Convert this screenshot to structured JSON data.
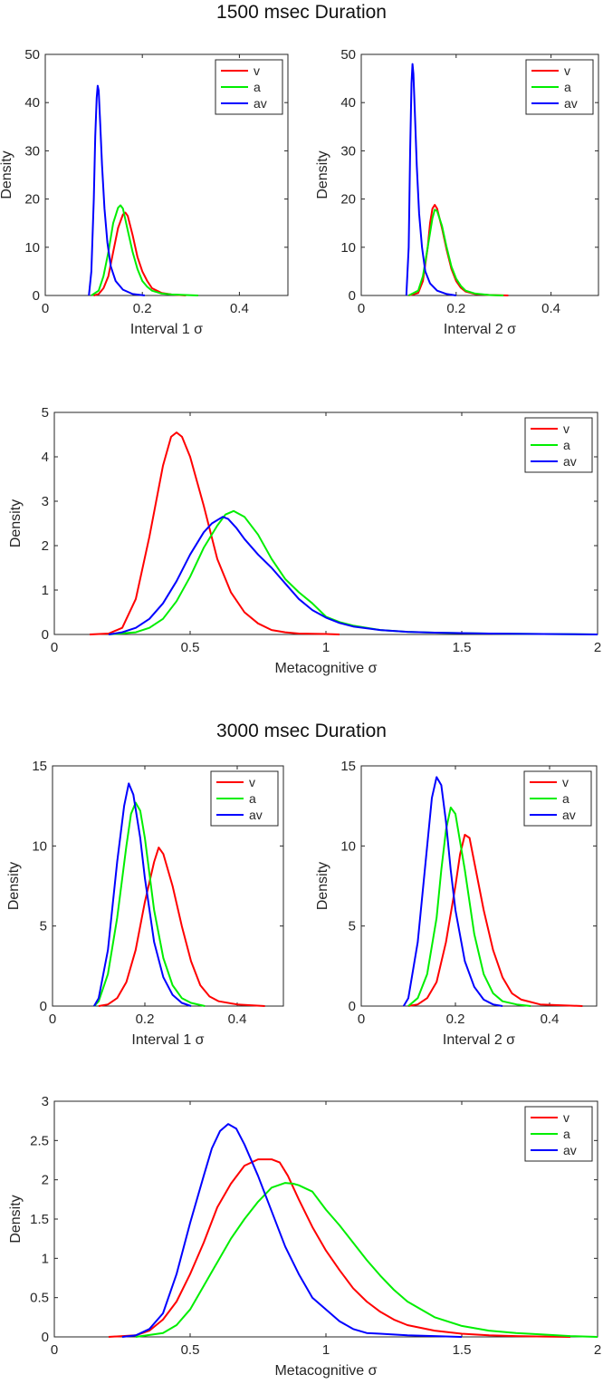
{
  "sections": [
    {
      "title": "1500 msec Duration"
    },
    {
      "title": "3000 msec Duration"
    }
  ],
  "chart_data": [
    {
      "type": "line",
      "title": "",
      "xlabel": "Interval 1 σ",
      "ylabel": "Density",
      "xlim": [
        0,
        0.5
      ],
      "ylim": [
        0,
        50
      ],
      "xticks": [
        0,
        0.2,
        0.4
      ],
      "xtick_labels": [
        "0",
        "0.2",
        "0.4"
      ],
      "yticks": [
        0,
        10,
        20,
        30,
        40,
        50
      ],
      "ytick_labels": [
        "0",
        "10",
        "20",
        "30",
        "40",
        "50"
      ],
      "legend": "top-right",
      "series": [
        {
          "name": "v",
          "color": "#ff0000",
          "x": [
            0.1,
            0.11,
            0.12,
            0.13,
            0.14,
            0.15,
            0.16,
            0.165,
            0.17,
            0.18,
            0.19,
            0.2,
            0.21,
            0.22,
            0.24,
            0.26,
            0.29
          ],
          "y": [
            0,
            0.3,
            1.5,
            4,
            9,
            14,
            16.8,
            17.2,
            16.5,
            12.5,
            8,
            5,
            3,
            1.5,
            0.5,
            0.2,
            0
          ]
        },
        {
          "name": "a",
          "color": "#00ee00",
          "x": [
            0.095,
            0.11,
            0.12,
            0.13,
            0.14,
            0.15,
            0.155,
            0.16,
            0.17,
            0.18,
            0.19,
            0.2,
            0.21,
            0.22,
            0.24,
            0.26,
            0.29,
            0.315
          ],
          "y": [
            0,
            1,
            4,
            9,
            15,
            18.2,
            18.7,
            18,
            13.5,
            9,
            5.5,
            3,
            1.8,
            1,
            0.4,
            0.2,
            0.1,
            0
          ]
        },
        {
          "name": "av",
          "color": "#0000ff",
          "x": [
            0.09,
            0.095,
            0.1,
            0.103,
            0.106,
            0.108,
            0.11,
            0.113,
            0.117,
            0.122,
            0.128,
            0.135,
            0.145,
            0.16,
            0.18,
            0.205
          ],
          "y": [
            0,
            5,
            20,
            33,
            41,
            43.5,
            42.5,
            36,
            27,
            18,
            11,
            6,
            3,
            1.2,
            0.3,
            0
          ]
        }
      ]
    },
    {
      "type": "line",
      "title": "",
      "xlabel": "Interval 2 σ",
      "ylabel": "Density",
      "xlim": [
        0,
        0.5
      ],
      "ylim": [
        0,
        50
      ],
      "xticks": [
        0,
        0.2,
        0.4
      ],
      "xtick_labels": [
        "0",
        "0.2",
        "0.4"
      ],
      "yticks": [
        0,
        10,
        20,
        30,
        40,
        50
      ],
      "ytick_labels": [
        "0",
        "10",
        "20",
        "30",
        "40",
        "50"
      ],
      "legend": "top-right",
      "series": [
        {
          "name": "v",
          "color": "#ff0000",
          "x": [
            0.1,
            0.12,
            0.13,
            0.14,
            0.145,
            0.15,
            0.155,
            0.16,
            0.17,
            0.18,
            0.19,
            0.2,
            0.21,
            0.22,
            0.24,
            0.27,
            0.31
          ],
          "y": [
            0,
            0.5,
            3,
            10,
            15,
            18,
            18.8,
            18,
            14,
            9.5,
            5.5,
            3,
            1.6,
            0.8,
            0.3,
            0.1,
            0
          ]
        },
        {
          "name": "a",
          "color": "#00ee00",
          "x": [
            0.1,
            0.12,
            0.13,
            0.14,
            0.15,
            0.155,
            0.16,
            0.17,
            0.18,
            0.19,
            0.2,
            0.21,
            0.22,
            0.24,
            0.27,
            0.3
          ],
          "y": [
            0,
            1,
            4,
            10,
            16,
            17.8,
            17.5,
            14.5,
            10,
            6,
            3.5,
            2,
            1,
            0.4,
            0.1,
            0
          ]
        },
        {
          "name": "av",
          "color": "#0000ff",
          "x": [
            0.095,
            0.1,
            0.103,
            0.106,
            0.108,
            0.11,
            0.113,
            0.117,
            0.122,
            0.128,
            0.135,
            0.145,
            0.16,
            0.18,
            0.2
          ],
          "y": [
            0,
            10,
            30,
            44,
            48,
            46,
            38,
            27,
            17,
            10,
            5,
            2.5,
            1,
            0.3,
            0
          ]
        }
      ]
    },
    {
      "type": "line",
      "title": "",
      "xlabel": "Metacognitive σ",
      "ylabel": "Density",
      "xlim": [
        0,
        2
      ],
      "ylim": [
        0,
        5
      ],
      "xticks": [
        0,
        0.5,
        1,
        1.5,
        2
      ],
      "xtick_labels": [
        "0",
        "0.5",
        "1",
        "1.5",
        "2"
      ],
      "yticks": [
        0,
        1,
        2,
        3,
        4,
        5
      ],
      "ytick_labels": [
        "0",
        "1",
        "2",
        "3",
        "4",
        "5"
      ],
      "legend": "top-right",
      "series": [
        {
          "name": "v",
          "color": "#ff0000",
          "x": [
            0.13,
            0.2,
            0.25,
            0.3,
            0.35,
            0.4,
            0.43,
            0.45,
            0.47,
            0.5,
            0.55,
            0.6,
            0.65,
            0.7,
            0.75,
            0.8,
            0.85,
            0.9,
            1.0,
            1.05
          ],
          "y": [
            0,
            0.02,
            0.15,
            0.8,
            2.2,
            3.8,
            4.45,
            4.55,
            4.45,
            4.0,
            2.9,
            1.7,
            0.95,
            0.5,
            0.25,
            0.1,
            0.05,
            0.02,
            0.01,
            0
          ]
        },
        {
          "name": "a",
          "color": "#00ee00",
          "x": [
            0.2,
            0.3,
            0.35,
            0.4,
            0.45,
            0.5,
            0.55,
            0.6,
            0.63,
            0.66,
            0.7,
            0.75,
            0.8,
            0.85,
            0.9,
            0.95,
            1.0,
            1.05,
            1.1,
            1.2,
            1.3,
            1.4,
            1.6,
            1.8,
            2.0
          ],
          "y": [
            0,
            0.05,
            0.15,
            0.35,
            0.75,
            1.3,
            1.95,
            2.45,
            2.7,
            2.78,
            2.65,
            2.25,
            1.7,
            1.25,
            0.95,
            0.7,
            0.4,
            0.28,
            0.2,
            0.1,
            0.06,
            0.04,
            0.02,
            0.01,
            0
          ]
        },
        {
          "name": "av",
          "color": "#0000ff",
          "x": [
            0.2,
            0.25,
            0.3,
            0.35,
            0.4,
            0.45,
            0.5,
            0.55,
            0.58,
            0.62,
            0.64,
            0.67,
            0.7,
            0.75,
            0.8,
            0.85,
            0.9,
            0.95,
            1.0,
            1.05,
            1.1,
            1.2,
            1.3,
            1.4,
            1.6,
            1.8,
            2.0
          ],
          "y": [
            0,
            0.05,
            0.15,
            0.35,
            0.7,
            1.2,
            1.8,
            2.3,
            2.5,
            2.65,
            2.6,
            2.4,
            2.15,
            1.8,
            1.5,
            1.15,
            0.8,
            0.55,
            0.38,
            0.26,
            0.18,
            0.1,
            0.06,
            0.04,
            0.02,
            0.01,
            0
          ]
        }
      ]
    },
    {
      "type": "line",
      "title": "",
      "xlabel": "Interval 1 σ",
      "ylabel": "Density",
      "xlim": [
        0,
        0.5
      ],
      "ylim": [
        0,
        15
      ],
      "xticks": [
        0,
        0.2,
        0.4
      ],
      "xtick_labels": [
        "0",
        "0.2",
        "0.4"
      ],
      "yticks": [
        0,
        5,
        10,
        15
      ],
      "ytick_labels": [
        "0",
        "5",
        "10",
        "15"
      ],
      "legend": "top-right",
      "series": [
        {
          "name": "v",
          "color": "#ff0000",
          "x": [
            0.1,
            0.12,
            0.14,
            0.16,
            0.18,
            0.2,
            0.22,
            0.23,
            0.24,
            0.26,
            0.28,
            0.3,
            0.32,
            0.34,
            0.36,
            0.4,
            0.46
          ],
          "y": [
            0,
            0.1,
            0.5,
            1.5,
            3.5,
            6.5,
            9,
            9.9,
            9.5,
            7.5,
            5,
            2.8,
            1.3,
            0.6,
            0.3,
            0.1,
            0
          ]
        },
        {
          "name": "a",
          "color": "#00ee00",
          "x": [
            0.09,
            0.1,
            0.12,
            0.14,
            0.16,
            0.17,
            0.18,
            0.19,
            0.2,
            0.22,
            0.24,
            0.26,
            0.28,
            0.3,
            0.33
          ],
          "y": [
            0,
            0.3,
            2,
            5.5,
            10,
            12,
            12.7,
            12.2,
            10.5,
            6,
            3,
            1.3,
            0.5,
            0.2,
            0
          ]
        },
        {
          "name": "av",
          "color": "#0000ff",
          "x": [
            0.09,
            0.1,
            0.12,
            0.14,
            0.155,
            0.165,
            0.175,
            0.19,
            0.2,
            0.22,
            0.24,
            0.26,
            0.28,
            0.3
          ],
          "y": [
            0,
            0.5,
            3.5,
            9,
            12.5,
            13.9,
            13.2,
            10.5,
            8,
            4,
            1.8,
            0.7,
            0.2,
            0
          ]
        }
      ]
    },
    {
      "type": "line",
      "title": "",
      "xlabel": "Interval 2 σ",
      "ylabel": "Density",
      "xlim": [
        0,
        0.5
      ],
      "ylim": [
        0,
        15
      ],
      "xticks": [
        0,
        0.2,
        0.4
      ],
      "xtick_labels": [
        "0",
        "0.2",
        "0.4"
      ],
      "yticks": [
        0,
        5,
        10,
        15
      ],
      "ytick_labels": [
        "0",
        "5",
        "10",
        "15"
      ],
      "legend": "top-right",
      "series": [
        {
          "name": "v",
          "color": "#ff0000",
          "x": [
            0.1,
            0.12,
            0.14,
            0.16,
            0.18,
            0.2,
            0.21,
            0.22,
            0.23,
            0.24,
            0.26,
            0.28,
            0.3,
            0.32,
            0.34,
            0.38,
            0.47
          ],
          "y": [
            0,
            0.1,
            0.5,
            1.5,
            4,
            7.5,
            9.5,
            10.7,
            10.5,
            9,
            6,
            3.5,
            1.8,
            0.8,
            0.4,
            0.1,
            0
          ]
        },
        {
          "name": "a",
          "color": "#00ee00",
          "x": [
            0.1,
            0.12,
            0.14,
            0.16,
            0.17,
            0.18,
            0.19,
            0.2,
            0.22,
            0.24,
            0.26,
            0.28,
            0.3,
            0.33,
            0.36
          ],
          "y": [
            0,
            0.5,
            2,
            5.5,
            8.5,
            11,
            12.4,
            12,
            8.5,
            4.5,
            2,
            0.8,
            0.3,
            0.1,
            0
          ]
        },
        {
          "name": "av",
          "color": "#0000ff",
          "x": [
            0.09,
            0.1,
            0.12,
            0.14,
            0.15,
            0.16,
            0.17,
            0.18,
            0.19,
            0.2,
            0.22,
            0.24,
            0.26,
            0.28,
            0.3
          ],
          "y": [
            0,
            0.5,
            4,
            10,
            13,
            14.3,
            13.8,
            11.5,
            8.5,
            6,
            2.8,
            1.2,
            0.4,
            0.1,
            0
          ]
        }
      ]
    },
    {
      "type": "line",
      "title": "",
      "xlabel": "Metacognitive σ",
      "ylabel": "Density",
      "xlim": [
        0,
        2
      ],
      "ylim": [
        0,
        3
      ],
      "xticks": [
        0,
        0.5,
        1,
        1.5,
        2
      ],
      "xtick_labels": [
        "0",
        "0.5",
        "1",
        "1.5",
        "2"
      ],
      "yticks": [
        0,
        0.5,
        1,
        1.5,
        2,
        2.5,
        3
      ],
      "ytick_labels": [
        "0",
        "0.5",
        "1",
        "1.5",
        "2",
        "2.5",
        "3"
      ],
      "legend": "top-right",
      "series": [
        {
          "name": "v",
          "color": "#ff0000",
          "x": [
            0.2,
            0.3,
            0.35,
            0.4,
            0.45,
            0.5,
            0.55,
            0.6,
            0.65,
            0.7,
            0.75,
            0.8,
            0.83,
            0.86,
            0.9,
            0.95,
            1.0,
            1.05,
            1.1,
            1.15,
            1.2,
            1.25,
            1.3,
            1.4,
            1.5,
            1.6,
            1.7,
            1.8,
            1.9
          ],
          "y": [
            0,
            0.02,
            0.08,
            0.22,
            0.45,
            0.8,
            1.2,
            1.65,
            1.95,
            2.18,
            2.26,
            2.26,
            2.22,
            2.05,
            1.75,
            1.4,
            1.1,
            0.85,
            0.62,
            0.45,
            0.32,
            0.22,
            0.15,
            0.08,
            0.04,
            0.02,
            0.01,
            0.005,
            0
          ]
        },
        {
          "name": "a",
          "color": "#00ee00",
          "x": [
            0.3,
            0.4,
            0.45,
            0.5,
            0.55,
            0.6,
            0.65,
            0.7,
            0.75,
            0.8,
            0.85,
            0.88,
            0.9,
            0.95,
            1.0,
            1.05,
            1.1,
            1.15,
            1.2,
            1.25,
            1.3,
            1.4,
            1.5,
            1.6,
            1.7,
            1.8,
            1.9,
            2.0
          ],
          "y": [
            0,
            0.05,
            0.15,
            0.35,
            0.65,
            0.95,
            1.25,
            1.5,
            1.72,
            1.9,
            1.96,
            1.95,
            1.93,
            1.85,
            1.62,
            1.42,
            1.2,
            0.98,
            0.78,
            0.6,
            0.45,
            0.25,
            0.14,
            0.08,
            0.05,
            0.03,
            0.01,
            0
          ]
        },
        {
          "name": "av",
          "color": "#0000ff",
          "x": [
            0.25,
            0.3,
            0.35,
            0.4,
            0.45,
            0.5,
            0.55,
            0.58,
            0.61,
            0.64,
            0.67,
            0.7,
            0.75,
            0.8,
            0.85,
            0.9,
            0.95,
            1.0,
            1.05,
            1.1,
            1.15,
            1.2,
            1.3,
            1.4,
            1.5
          ],
          "y": [
            0,
            0.02,
            0.1,
            0.3,
            0.8,
            1.45,
            2.05,
            2.4,
            2.62,
            2.71,
            2.65,
            2.45,
            2.05,
            1.6,
            1.15,
            0.8,
            0.5,
            0.35,
            0.2,
            0.1,
            0.05,
            0.04,
            0.02,
            0.01,
            0
          ]
        }
      ]
    }
  ]
}
